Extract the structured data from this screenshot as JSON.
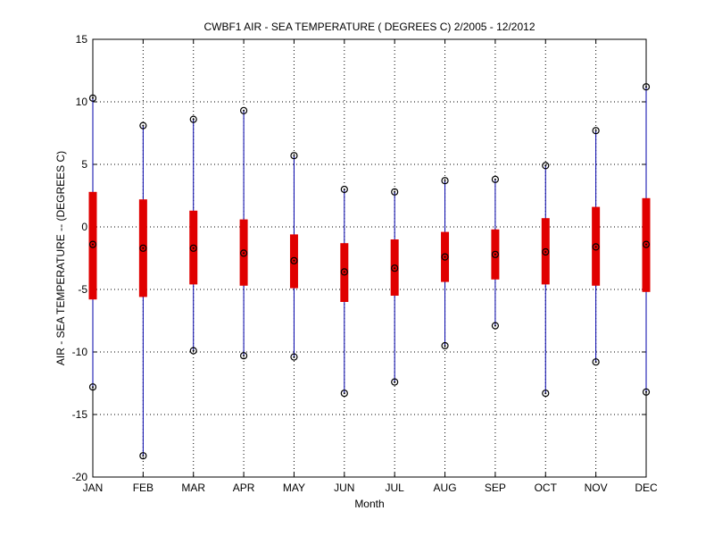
{
  "chart_data": {
    "type": "boxplot",
    "title": "CWBF1  AIR - SEA TEMPERATURE ( DEGREES C) 2/2005 - 12/2012",
    "xlabel": "Month",
    "ylabel": "AIR - SEA TEMPERATURE -- (DEGREES C)",
    "ylim": [
      -20,
      15
    ],
    "yticks": [
      -20,
      -15,
      -10,
      -5,
      0,
      5,
      10,
      15
    ],
    "grid": true,
    "categories": [
      "JAN",
      "FEB",
      "MAR",
      "APR",
      "MAY",
      "JUN",
      "JUL",
      "AUG",
      "SEP",
      "OCT",
      "NOV",
      "DEC"
    ],
    "max": [
      10.3,
      8.1,
      8.6,
      9.3,
      5.7,
      3.0,
      2.8,
      3.7,
      3.8,
      4.9,
      7.7,
      11.2
    ],
    "q3": [
      2.8,
      2.2,
      1.3,
      0.6,
      -0.6,
      -1.3,
      -1.0,
      -0.4,
      -0.2,
      0.7,
      1.6,
      2.3
    ],
    "median": [
      -1.4,
      -1.7,
      -1.7,
      -2.1,
      -2.7,
      -3.6,
      -3.3,
      -2.4,
      -2.2,
      -2.0,
      -1.6,
      -1.4
    ],
    "q1": [
      -5.8,
      -5.6,
      -4.6,
      -4.7,
      -4.9,
      -6.0,
      -5.5,
      -4.4,
      -4.2,
      -4.6,
      -4.7,
      -5.2
    ],
    "min": [
      -12.8,
      -18.3,
      -9.9,
      -10.3,
      -10.4,
      -13.3,
      -12.4,
      -9.5,
      -7.9,
      -13.3,
      -10.8,
      -13.2
    ],
    "colors": {
      "whisker": "#0000aa",
      "box": "#e00000",
      "marker": "#000000",
      "grid": "#000000"
    }
  }
}
